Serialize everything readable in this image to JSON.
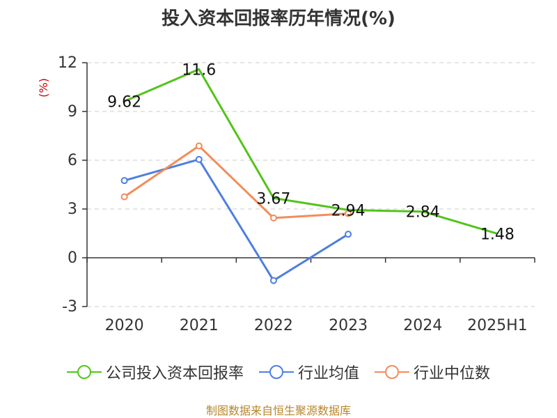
{
  "chart_data": {
    "type": "line",
    "title": "投入资本回报率历年情况(%)",
    "ylabel": "(%)",
    "categories": [
      "2020",
      "2021",
      "2022",
      "2023",
      "2024",
      "2025H1"
    ],
    "ylim": [
      -3,
      12
    ],
    "yticks": [
      -3,
      0,
      3,
      6,
      9,
      12
    ],
    "ytick_labels": [
      "-3",
      "0",
      "3",
      "6",
      "9",
      "12"
    ],
    "grid": true,
    "legend_position": "bottom",
    "series": [
      {
        "name": "公司投入资本回报率",
        "color": "#52c41a",
        "values": [
          9.62,
          11.6,
          3.67,
          2.94,
          2.84,
          1.48
        ],
        "labels": [
          "9.62",
          "11.6",
          "3.67",
          "2.94",
          "2.84",
          "1.48"
        ],
        "show_markers": false
      },
      {
        "name": "行业均值",
        "color": "#4e7fe0",
        "values": [
          4.75,
          6.05,
          -1.4,
          1.45,
          null,
          null
        ],
        "show_markers": true
      },
      {
        "name": "行业中位数",
        "color": "#f28c5a",
        "values": [
          3.75,
          6.88,
          2.45,
          2.72,
          null,
          null
        ],
        "show_markers": true
      }
    ]
  },
  "footer": {
    "source": "制图数据来自恒生聚源数据库"
  },
  "colors": {
    "axis": "#333333",
    "grid": "#cccccc",
    "ylabel": "#cc0000",
    "source": "#b8862b"
  }
}
